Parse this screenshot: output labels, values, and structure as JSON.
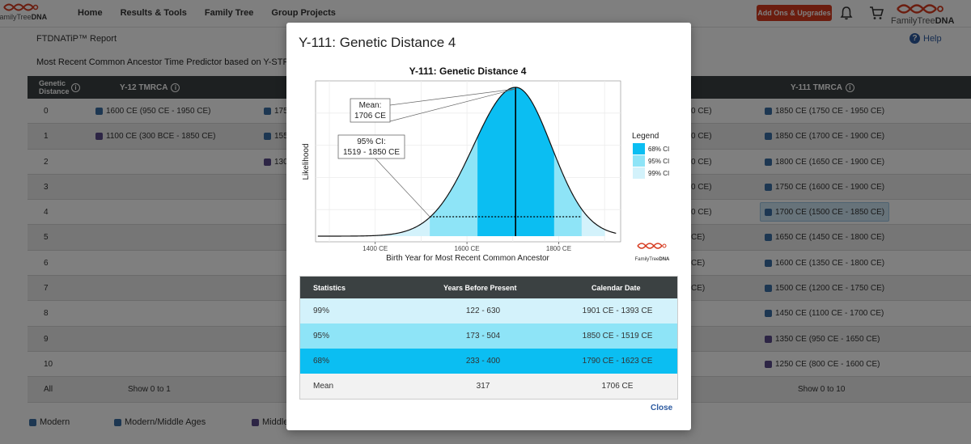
{
  "brand": {
    "name_part1": "FamilyTree",
    "name_part2": "DNA"
  },
  "nav": {
    "items": [
      "Home",
      "Results & Tools",
      "Family Tree",
      "Group Projects"
    ]
  },
  "header": {
    "addons_label": "Add Ons & Upgrades"
  },
  "page": {
    "report_title": "FTDNATiP™ Report",
    "help_label": "Help",
    "subtitle": "Most Recent Common Ancestor Time Predictor based on Y-STR Ge"
  },
  "table": {
    "headers": {
      "distance": "Genetic Distance",
      "y12": "Y-12 TMRCA",
      "y111": "Y-111 TMRCA"
    },
    "rows": [
      {
        "d": "0",
        "y12": "1600 CE (950 CE - 1950 CE)",
        "y12_color": "#3a6ea5",
        "mid_a": "175",
        "mid_a_color": "#3a6ea5",
        "mid_b": "0 CE)",
        "y111": "1850 CE (1750 CE - 1950 CE)",
        "y111_color": "#3a6ea5"
      },
      {
        "d": "1",
        "y12": "1100 CE (300 BCE - 1850 CE)",
        "y12_color": "#5b4a8a",
        "mid_a": "155",
        "mid_a_color": "#3a6ea5",
        "mid_b": "0 CE)",
        "y111": "1850 CE (1700 CE - 1900 CE)",
        "y111_color": "#3a6ea5"
      },
      {
        "d": "2",
        "y12": "",
        "y12_color": "",
        "mid_a": "130",
        "mid_a_color": "#5b4a8a",
        "mid_b": "0 CE)",
        "y111": "1800 CE (1650 CE - 1900 CE)",
        "y111_color": "#3a6ea5"
      },
      {
        "d": "3",
        "y12": "",
        "y12_color": "",
        "mid_a": "",
        "mid_a_color": "",
        "mid_b": "0 CE)",
        "y111": "1750 CE (1600 CE - 1900 CE)",
        "y111_color": "#3a6ea5"
      },
      {
        "d": "4",
        "y12": "",
        "y12_color": "",
        "mid_a": "",
        "mid_a_color": "",
        "mid_b": "0 CE)",
        "y111": "1700 CE (1500 CE - 1850 CE)",
        "y111_color": "#3a6ea5"
      },
      {
        "d": "5",
        "y12": "",
        "y12_color": "",
        "mid_a": "",
        "mid_a_color": "",
        "mid_b": "CE)",
        "y111": "1650 CE (1450 CE - 1800 CE)",
        "y111_color": "#3a6ea5"
      },
      {
        "d": "6",
        "y12": "",
        "y12_color": "",
        "mid_a": "",
        "mid_a_color": "",
        "mid_b": "CE)",
        "y111": "1600 CE (1350 CE - 1800 CE)",
        "y111_color": "#3a6ea5"
      },
      {
        "d": "7",
        "y12": "",
        "y12_color": "",
        "mid_a": "",
        "mid_a_color": "",
        "mid_b": "CE)",
        "y111": "1500 CE (1200 CE - 1750 CE)",
        "y111_color": "#3a6ea5"
      },
      {
        "d": "8",
        "y12": "",
        "y12_color": "",
        "mid_a": "",
        "mid_a_color": "",
        "mid_b": "",
        "y111": "1450 CE (1100 CE - 1700 CE)",
        "y111_color": "#3a6ea5"
      },
      {
        "d": "9",
        "y12": "",
        "y12_color": "",
        "mid_a": "",
        "mid_a_color": "",
        "mid_b": "",
        "y111": "1350 CE (950 CE - 1650 CE)",
        "y111_color": "#5b4a8a"
      },
      {
        "d": "10",
        "y12": "",
        "y12_color": "",
        "mid_a": "",
        "mid_a_color": "",
        "mid_b": "",
        "y111": "1250 CE (800 CE - 1600 CE)",
        "y111_color": "#5b4a8a"
      },
      {
        "d": "All",
        "y12": "Show 0 to 1",
        "y12_color": "",
        "mid_a": "",
        "mid_a_color": "",
        "mid_b": "",
        "y111": "Show 0 to 10",
        "y111_color": ""
      }
    ],
    "selected_distance": "4"
  },
  "bottom_legend": [
    {
      "label": "Modern",
      "color": "#3a6ea5"
    },
    {
      "label": "Modern/Middle Ages",
      "color": "#3a6ea5"
    },
    {
      "label": "Middle",
      "color": "#5b4a8a"
    }
  ],
  "modal": {
    "title": "Y-111: Genetic Distance 4",
    "close_label": "Close",
    "stats": {
      "headers": [
        "Statistics",
        "Years Before Present",
        "Calendar Date"
      ],
      "rows": [
        {
          "stat": "99%",
          "ybp": "122 - 630",
          "date": "1901 CE - 1393 CE",
          "color": "#d3f2fb"
        },
        {
          "stat": "95%",
          "ybp": "173 - 504",
          "date": "1850 CE - 1519 CE",
          "color": "#8ee4f7"
        },
        {
          "stat": "68%",
          "ybp": "233 - 400",
          "date": "1790 CE - 1623 CE",
          "color": "#0bbef2"
        },
        {
          "stat": "Mean",
          "ybp": "317",
          "date": "1706 CE",
          "color": "#f2f2f2"
        }
      ]
    }
  },
  "chart_data": {
    "type": "area",
    "title": "Y-111: Genetic Distance 4",
    "xlabel": "Birth Year for Most Recent Common Ancestor",
    "ylabel": "Likelihood",
    "xlim": [
      1270,
      1935
    ],
    "x_ticks": [
      1400,
      1600,
      1800
    ],
    "x_tick_labels": [
      "1400 CE",
      "1600 CE",
      "1800 CE"
    ],
    "mean": 1706,
    "sd_left": 92,
    "sd_right": 78,
    "intervals": [
      {
        "name": "99% CI",
        "from": 1393,
        "to": 1901,
        "color": "#d3f2fb"
      },
      {
        "name": "95% CI",
        "from": 1519,
        "to": 1850,
        "color": "#8ee4f7"
      },
      {
        "name": "68% CI",
        "from": 1623,
        "to": 1790,
        "color": "#0bbef2"
      }
    ],
    "annotations": [
      {
        "text_line1": "Mean:",
        "text_line2": "1706 CE"
      },
      {
        "text_line1": "95% CI:",
        "text_line2": "1519 - 1850 CE"
      }
    ],
    "legend": {
      "title": "Legend",
      "placement": "right",
      "entries": [
        "68% CI",
        "95% CI",
        "99% CI"
      ]
    },
    "grid": true,
    "logo": {
      "name_part1": "FamilyTree",
      "name_part2": "DNA"
    }
  }
}
